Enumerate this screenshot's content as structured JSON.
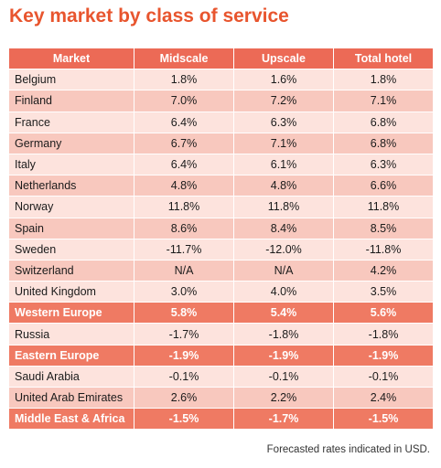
{
  "title": "Key market by class of service",
  "table": {
    "headers": [
      "Market",
      "Midscale",
      "Upscale",
      "Total hotel"
    ],
    "rows": [
      {
        "type": "lt",
        "cells": [
          "Belgium",
          "1.8%",
          "1.6%",
          "1.8%"
        ]
      },
      {
        "type": "dk",
        "cells": [
          "Finland",
          "7.0%",
          "7.2%",
          "7.1%"
        ]
      },
      {
        "type": "lt",
        "cells": [
          "France",
          "6.4%",
          "6.3%",
          "6.8%"
        ]
      },
      {
        "type": "dk",
        "cells": [
          "Germany",
          "6.7%",
          "7.1%",
          "6.8%"
        ]
      },
      {
        "type": "lt",
        "cells": [
          "Italy",
          "6.4%",
          "6.1%",
          "6.3%"
        ]
      },
      {
        "type": "dk",
        "cells": [
          "Netherlands",
          "4.8%",
          "4.8%",
          "6.6%"
        ]
      },
      {
        "type": "lt",
        "cells": [
          "Norway",
          "11.8%",
          "11.8%",
          "11.8%"
        ]
      },
      {
        "type": "dk",
        "cells": [
          "Spain",
          "8.6%",
          "8.4%",
          "8.5%"
        ]
      },
      {
        "type": "lt",
        "cells": [
          "Sweden",
          "-11.7%",
          "-12.0%",
          "-11.8%"
        ]
      },
      {
        "type": "dk",
        "cells": [
          "Switzerland",
          "N/A",
          "N/A",
          "4.2%"
        ]
      },
      {
        "type": "lt",
        "cells": [
          "United Kingdom",
          "3.0%",
          "4.0%",
          "3.5%"
        ]
      },
      {
        "type": "reg",
        "cells": [
          "Western Europe",
          "5.8%",
          "5.4%",
          "5.6%"
        ]
      },
      {
        "type": "lt",
        "cells": [
          "Russia",
          "-1.7%",
          "-1.8%",
          "-1.8%"
        ]
      },
      {
        "type": "reg",
        "cells": [
          "Eastern Europe",
          "-1.9%",
          "-1.9%",
          "-1.9%"
        ]
      },
      {
        "type": "lt",
        "cells": [
          "Saudi Arabia",
          "-0.1%",
          "-0.1%",
          "-0.1%"
        ]
      },
      {
        "type": "dk",
        "cells": [
          "United Arab Emirates",
          "2.6%",
          "2.2%",
          "2.4%"
        ]
      },
      {
        "type": "reg",
        "cells": [
          "Middle East & Africa",
          "-1.5%",
          "-1.7%",
          "-1.5%"
        ]
      }
    ]
  },
  "footnote": "Forecasted rates indicated in USD.",
  "colors": {
    "title": "#e8552e",
    "header_bg": "#ec6a56",
    "region_bg": "#ef7a63",
    "row_light": "#fde3dd",
    "row_dark": "#f8c8be"
  }
}
